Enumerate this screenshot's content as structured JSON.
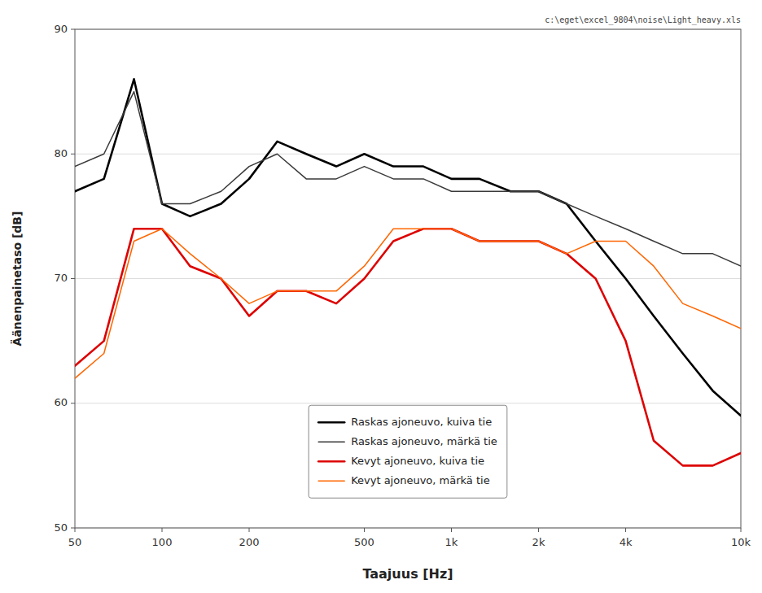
{
  "chart_data": {
    "type": "line",
    "xlabel": "Taajuus [Hz]",
    "ylabel": "Äänenpainetaso [dB]",
    "annotations": [
      "c:\\eget\\excel_9804\\noise\\Light_heavy.xls"
    ],
    "log": "x",
    "xlim": [
      50,
      10000
    ],
    "xticks": [
      50,
      100,
      200,
      500,
      {
        "value": 1000,
        "label": "1k"
      },
      {
        "value": 2000,
        "label": "2k"
      },
      {
        "value": 4000,
        "label": "4k"
      },
      {
        "value": 10000,
        "label": "10k"
      }
    ],
    "ylim": [
      50,
      90
    ],
    "yticks": [
      50,
      60,
      70,
      80,
      90
    ],
    "grid": true,
    "legend": "lower center",
    "x": [
      50,
      63,
      80,
      100,
      125,
      160,
      200,
      250,
      315,
      400,
      500,
      630,
      800,
      1000,
      1250,
      1600,
      2000,
      2500,
      3150,
      4000,
      5000,
      6300,
      8000,
      10000
    ],
    "series": [
      {
        "name": "Raskas ajoneuvo, kuiva tie",
        "color": "#000000",
        "values": [
          77,
          78,
          86,
          76,
          75,
          76,
          78,
          81,
          80,
          79,
          80,
          79,
          79,
          78,
          78,
          77,
          77,
          76,
          73,
          70,
          67,
          64,
          61,
          59
        ]
      },
      {
        "name": "Raskas ajoneuvo, märkä tie",
        "color": "#3a3a3a",
        "values": [
          79,
          80,
          85,
          76,
          76,
          77,
          79,
          80,
          78,
          78,
          79,
          78,
          78,
          77,
          77,
          77,
          77,
          76,
          75,
          74,
          73,
          72,
          72,
          71
        ]
      },
      {
        "name": "Kevyt ajoneuvo, kuiva tie",
        "color": "#DD0000",
        "values": [
          63,
          65,
          74,
          74,
          71,
          70,
          67,
          69,
          69,
          68,
          70,
          73,
          74,
          74,
          73,
          73,
          73,
          72,
          70,
          65,
          57,
          55,
          55,
          56
        ]
      },
      {
        "name": "Kevyt ajoneuvo, märkä tie",
        "color": "#FF6600",
        "values": [
          62,
          64,
          73,
          74,
          72,
          70,
          68,
          69,
          69,
          69,
          71,
          74,
          74,
          74,
          73,
          73,
          73,
          72,
          73,
          73,
          71,
          68,
          67,
          66
        ]
      }
    ]
  }
}
